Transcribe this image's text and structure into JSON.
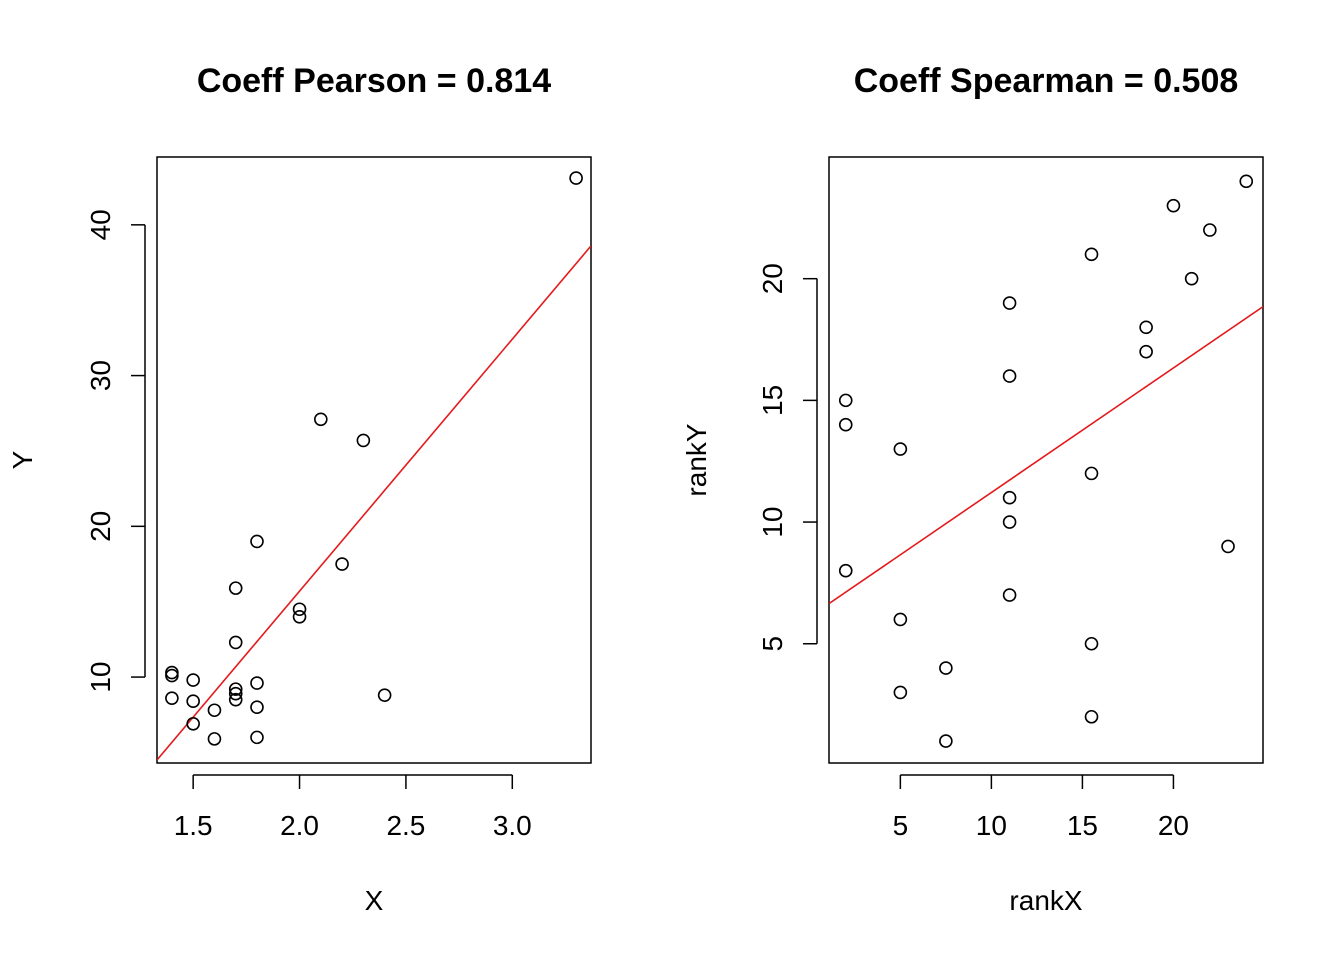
{
  "colors": {
    "fit_line": "#E41A1C",
    "points": "#000000",
    "frame": "#000000",
    "background": "#FFFFFF"
  },
  "chart_data": [
    {
      "type": "scatter",
      "title": "Coeff Pearson =  0.814",
      "xlabel": "X",
      "ylabel": "Y",
      "xlim": [
        1.33,
        3.37
      ],
      "ylim": [
        4.3,
        44.5
      ],
      "xticks": [
        1.5,
        2.0,
        2.5,
        3.0
      ],
      "xtick_labels": [
        "1.5",
        "2.0",
        "2.5",
        "3.0"
      ],
      "yticks": [
        10,
        20,
        30,
        40
      ],
      "ytick_labels": [
        "10",
        "20",
        "30",
        "40"
      ],
      "grid": false,
      "legend": "none",
      "points": [
        {
          "x": 1.4,
          "y": 10.3
        },
        {
          "x": 1.4,
          "y": 10.1
        },
        {
          "x": 1.4,
          "y": 8.6
        },
        {
          "x": 1.5,
          "y": 9.8
        },
        {
          "x": 1.5,
          "y": 8.4
        },
        {
          "x": 1.5,
          "y": 6.9
        },
        {
          "x": 1.6,
          "y": 7.8
        },
        {
          "x": 1.6,
          "y": 5.9
        },
        {
          "x": 1.7,
          "y": 15.9
        },
        {
          "x": 1.7,
          "y": 12.3
        },
        {
          "x": 1.7,
          "y": 9.2
        },
        {
          "x": 1.7,
          "y": 8.9
        },
        {
          "x": 1.7,
          "y": 8.5
        },
        {
          "x": 1.8,
          "y": 19.0
        },
        {
          "x": 1.8,
          "y": 9.6
        },
        {
          "x": 1.8,
          "y": 8.0
        },
        {
          "x": 1.8,
          "y": 6.0
        },
        {
          "x": 2.0,
          "y": 14.5
        },
        {
          "x": 2.0,
          "y": 14.0
        },
        {
          "x": 2.1,
          "y": 27.1
        },
        {
          "x": 2.2,
          "y": 17.5
        },
        {
          "x": 2.3,
          "y": 25.7
        },
        {
          "x": 2.4,
          "y": 8.8
        },
        {
          "x": 3.3,
          "y": 43.1
        }
      ],
      "fit_line": {
        "x1": 1.33,
        "y1": 4.5,
        "x2": 3.37,
        "y2": 38.6
      }
    },
    {
      "type": "scatter",
      "title": "Coeff Spearman =  0.508",
      "xlabel": "rankX",
      "ylabel": "rankY",
      "xlim": [
        1.08,
        24.92
      ],
      "ylim": [
        0.1,
        25.0
      ],
      "xticks": [
        5,
        10,
        15,
        20
      ],
      "xtick_labels": [
        "5",
        "10",
        "15",
        "20"
      ],
      "yticks": [
        5,
        10,
        15,
        20
      ],
      "ytick_labels": [
        "5",
        "10",
        "15",
        "20"
      ],
      "grid": false,
      "legend": "none",
      "points": [
        {
          "x": 2,
          "y": 15
        },
        {
          "x": 2,
          "y": 14
        },
        {
          "x": 2,
          "y": 8
        },
        {
          "x": 5,
          "y": 13
        },
        {
          "x": 5,
          "y": 6
        },
        {
          "x": 5,
          "y": 3
        },
        {
          "x": 7.5,
          "y": 4
        },
        {
          "x": 7.5,
          "y": 1
        },
        {
          "x": 11,
          "y": 19
        },
        {
          "x": 11,
          "y": 16
        },
        {
          "x": 11,
          "y": 11
        },
        {
          "x": 11,
          "y": 10
        },
        {
          "x": 11,
          "y": 7
        },
        {
          "x": 15.5,
          "y": 21
        },
        {
          "x": 15.5,
          "y": 12
        },
        {
          "x": 15.5,
          "y": 5
        },
        {
          "x": 15.5,
          "y": 2
        },
        {
          "x": 18.5,
          "y": 18
        },
        {
          "x": 18.5,
          "y": 17
        },
        {
          "x": 20,
          "y": 23
        },
        {
          "x": 21,
          "y": 20
        },
        {
          "x": 22,
          "y": 22
        },
        {
          "x": 23,
          "y": 9
        },
        {
          "x": 24,
          "y": 24
        }
      ],
      "fit_line": {
        "x1": 1.08,
        "y1": 6.65,
        "x2": 24.92,
        "y2": 18.85
      }
    }
  ]
}
